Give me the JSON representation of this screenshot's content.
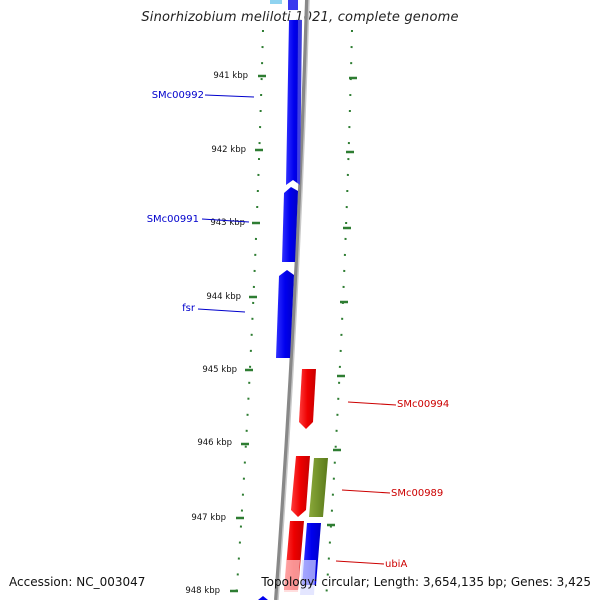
{
  "title": "Sinorhizobium meliloti 1021, complete genome",
  "footer": {
    "accession": "Accession: NC_003047",
    "summary": "Topology: circular; Length: 3,654,135 bp; Genes: 3,425"
  },
  "colors": {
    "forward_cds": "#0000ee",
    "reverse_cds": "#ee0000",
    "other_feature": "#6b8e23",
    "backbone": "#888888",
    "ticks": "#2e7d32"
  },
  "ticks": [
    {
      "label": "941 kbp"
    },
    {
      "label": "942 kbp"
    },
    {
      "label": "943 kbp"
    },
    {
      "label": "944 kbp"
    },
    {
      "label": "945 kbp"
    },
    {
      "label": "946 kbp"
    },
    {
      "label": "947 kbp"
    },
    {
      "label": "948 kbp"
    }
  ],
  "gene_labels": [
    {
      "label": "SMc00992"
    },
    {
      "label": "SMc00991"
    },
    {
      "label": "fsr"
    },
    {
      "label": "SMc00994"
    },
    {
      "label": "SMc00989"
    },
    {
      "label": "ubiA"
    }
  ]
}
